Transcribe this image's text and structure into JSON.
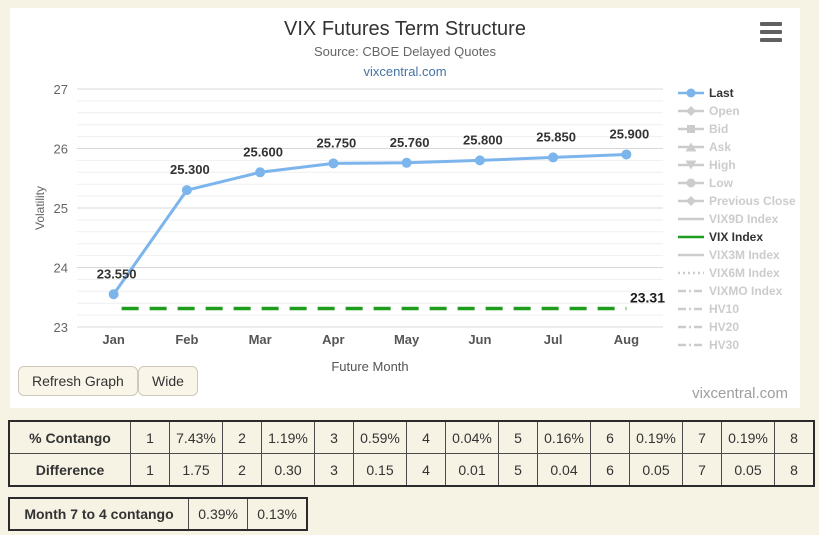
{
  "header": {
    "title": "VIX Futures Term Structure",
    "subtitle": "Source: CBOE Delayed Quotes",
    "link": "vixcentral.com"
  },
  "chart_data": {
    "type": "line",
    "title": "VIX Futures Term Structure",
    "categories": [
      "Jan",
      "Feb",
      "Mar",
      "Apr",
      "May",
      "Jun",
      "Jul",
      "Aug"
    ],
    "series": [
      {
        "name": "Last",
        "color": "#7cb5ec",
        "values": [
          23.55,
          25.3,
          25.6,
          25.75,
          25.76,
          25.8,
          25.85,
          25.9
        ],
        "point_labels": [
          "23.550",
          "25.300",
          "25.600",
          "25.750",
          "25.760",
          "25.800",
          "25.850",
          "25.900"
        ]
      }
    ],
    "reference_line": {
      "name": "VIX Index",
      "value": 23.31,
      "label": "23.31",
      "color": "#1e9c1e",
      "style": "dashed"
    },
    "xlabel": "Future Month",
    "ylabel": "Volatility",
    "ylim": [
      23,
      27
    ],
    "y_ticks": [
      23,
      24,
      25,
      26,
      27
    ],
    "minor_tick_step": 0.2,
    "grid": true,
    "legend_position": "right"
  },
  "legend": {
    "items": [
      {
        "label": "Last",
        "marker": "line-circle",
        "color": "#7cb5ec",
        "active": true
      },
      {
        "label": "Open",
        "marker": "line-diamond",
        "color": "#cccccc",
        "active": false
      },
      {
        "label": "Bid",
        "marker": "line-square",
        "color": "#cccccc",
        "active": false
      },
      {
        "label": "Ask",
        "marker": "line-triangle",
        "color": "#cccccc",
        "active": false
      },
      {
        "label": "High",
        "marker": "line-triangle-down",
        "color": "#cccccc",
        "active": false
      },
      {
        "label": "Low",
        "marker": "line-circle",
        "color": "#cccccc",
        "active": false
      },
      {
        "label": "Previous Close",
        "marker": "line-diamond",
        "color": "#cccccc",
        "active": false
      },
      {
        "label": "VIX9D Index",
        "marker": "line",
        "color": "#cccccc",
        "active": false
      },
      {
        "label": "VIX Index",
        "marker": "line",
        "color": "#1e9c1e",
        "active": true
      },
      {
        "label": "VIX3M Index",
        "marker": "line",
        "color": "#cccccc",
        "active": false
      },
      {
        "label": "VIX6M Index",
        "marker": "line-dotted",
        "color": "#cccccc",
        "active": false
      },
      {
        "label": "VIXMO Index",
        "marker": "line-dashdot",
        "color": "#cccccc",
        "active": false
      },
      {
        "label": "HV10",
        "marker": "line-dashdot",
        "color": "#cccccc",
        "active": false
      },
      {
        "label": "HV20",
        "marker": "line-dashdot",
        "color": "#cccccc",
        "active": false
      },
      {
        "label": "HV30",
        "marker": "line-dashdot",
        "color": "#cccccc",
        "active": false
      }
    ]
  },
  "buttons": {
    "refresh": "Refresh Graph",
    "wide": "Wide"
  },
  "watermark": "vixcentral.com",
  "contango_table": {
    "rows": [
      {
        "label": "% Contango",
        "cells": [
          "1",
          "7.43%",
          "2",
          "1.19%",
          "3",
          "0.59%",
          "4",
          "0.04%",
          "5",
          "0.16%",
          "6",
          "0.19%",
          "7",
          "0.19%",
          "8"
        ]
      },
      {
        "label": "Difference",
        "cells": [
          "1",
          "1.75",
          "2",
          "0.30",
          "3",
          "0.15",
          "4",
          "0.01",
          "5",
          "0.04",
          "6",
          "0.05",
          "7",
          "0.05",
          "8"
        ]
      }
    ]
  },
  "month_contango_table": {
    "label": "Month 7 to 4 contango",
    "values": [
      "0.39%",
      "0.13%"
    ]
  },
  "colors": {
    "page_background": "#f6f2e4",
    "panel_background": "#ffffff",
    "series_blue": "#7cb5ec",
    "vix_green": "#1e9c1e",
    "link_blue": "#4572a7"
  }
}
